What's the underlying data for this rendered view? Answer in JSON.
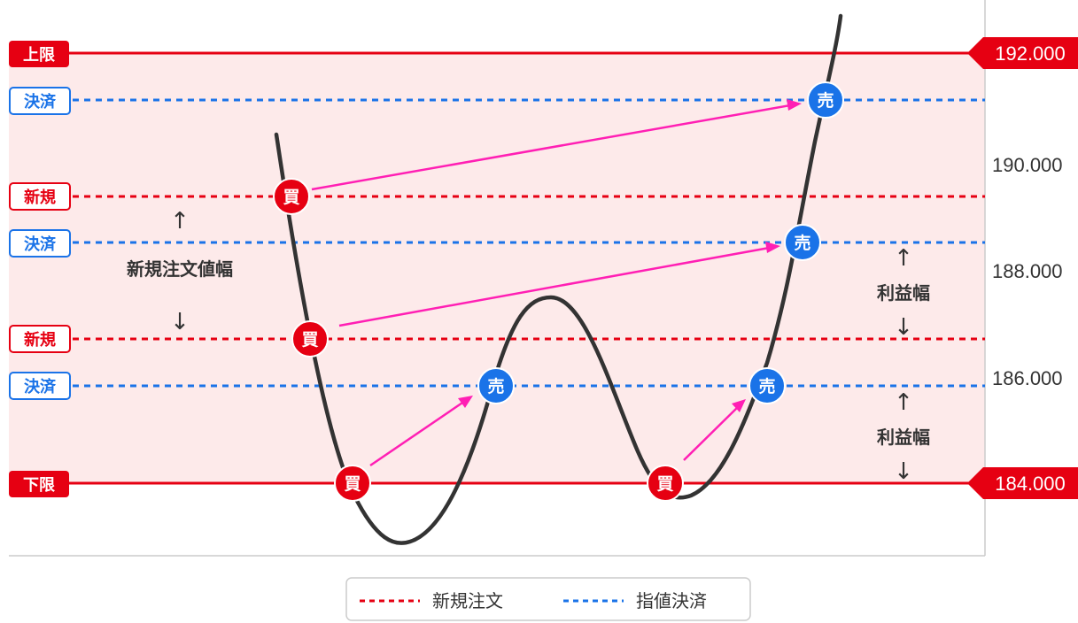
{
  "colors": {
    "red": "#e60012",
    "blue": "#1a73e8",
    "pink": "#ff1fb4",
    "band": "#fdeaea",
    "curve": "#333333"
  },
  "y_axis": {
    "min": 183.0,
    "max": 193.0,
    "ticks": [
      "190.000",
      "188.000",
      "186.000"
    ]
  },
  "range": {
    "upper": {
      "label": "上限",
      "price": 192.0,
      "price_text": "192.000"
    },
    "lower": {
      "label": "下限",
      "price": 184.0,
      "price_text": "184.000"
    }
  },
  "lines": [
    {
      "kind": "exit",
      "label": "決済",
      "price": 191.1
    },
    {
      "kind": "entry",
      "label": "新規",
      "price": 189.3
    },
    {
      "kind": "exit",
      "label": "決済",
      "price": 188.5
    },
    {
      "kind": "entry",
      "label": "新規",
      "price": 186.7
    },
    {
      "kind": "exit",
      "label": "決済",
      "price": 185.9
    }
  ],
  "markers": {
    "buy_label": "買",
    "sell_label": "売"
  },
  "annotations": {
    "entry_width": "新規注文値幅",
    "profit_width": "利益幅",
    "up_arrow": "↑",
    "down_arrow": "↓"
  },
  "legend": {
    "entry": "新規注文",
    "exit": "指値決済"
  }
}
